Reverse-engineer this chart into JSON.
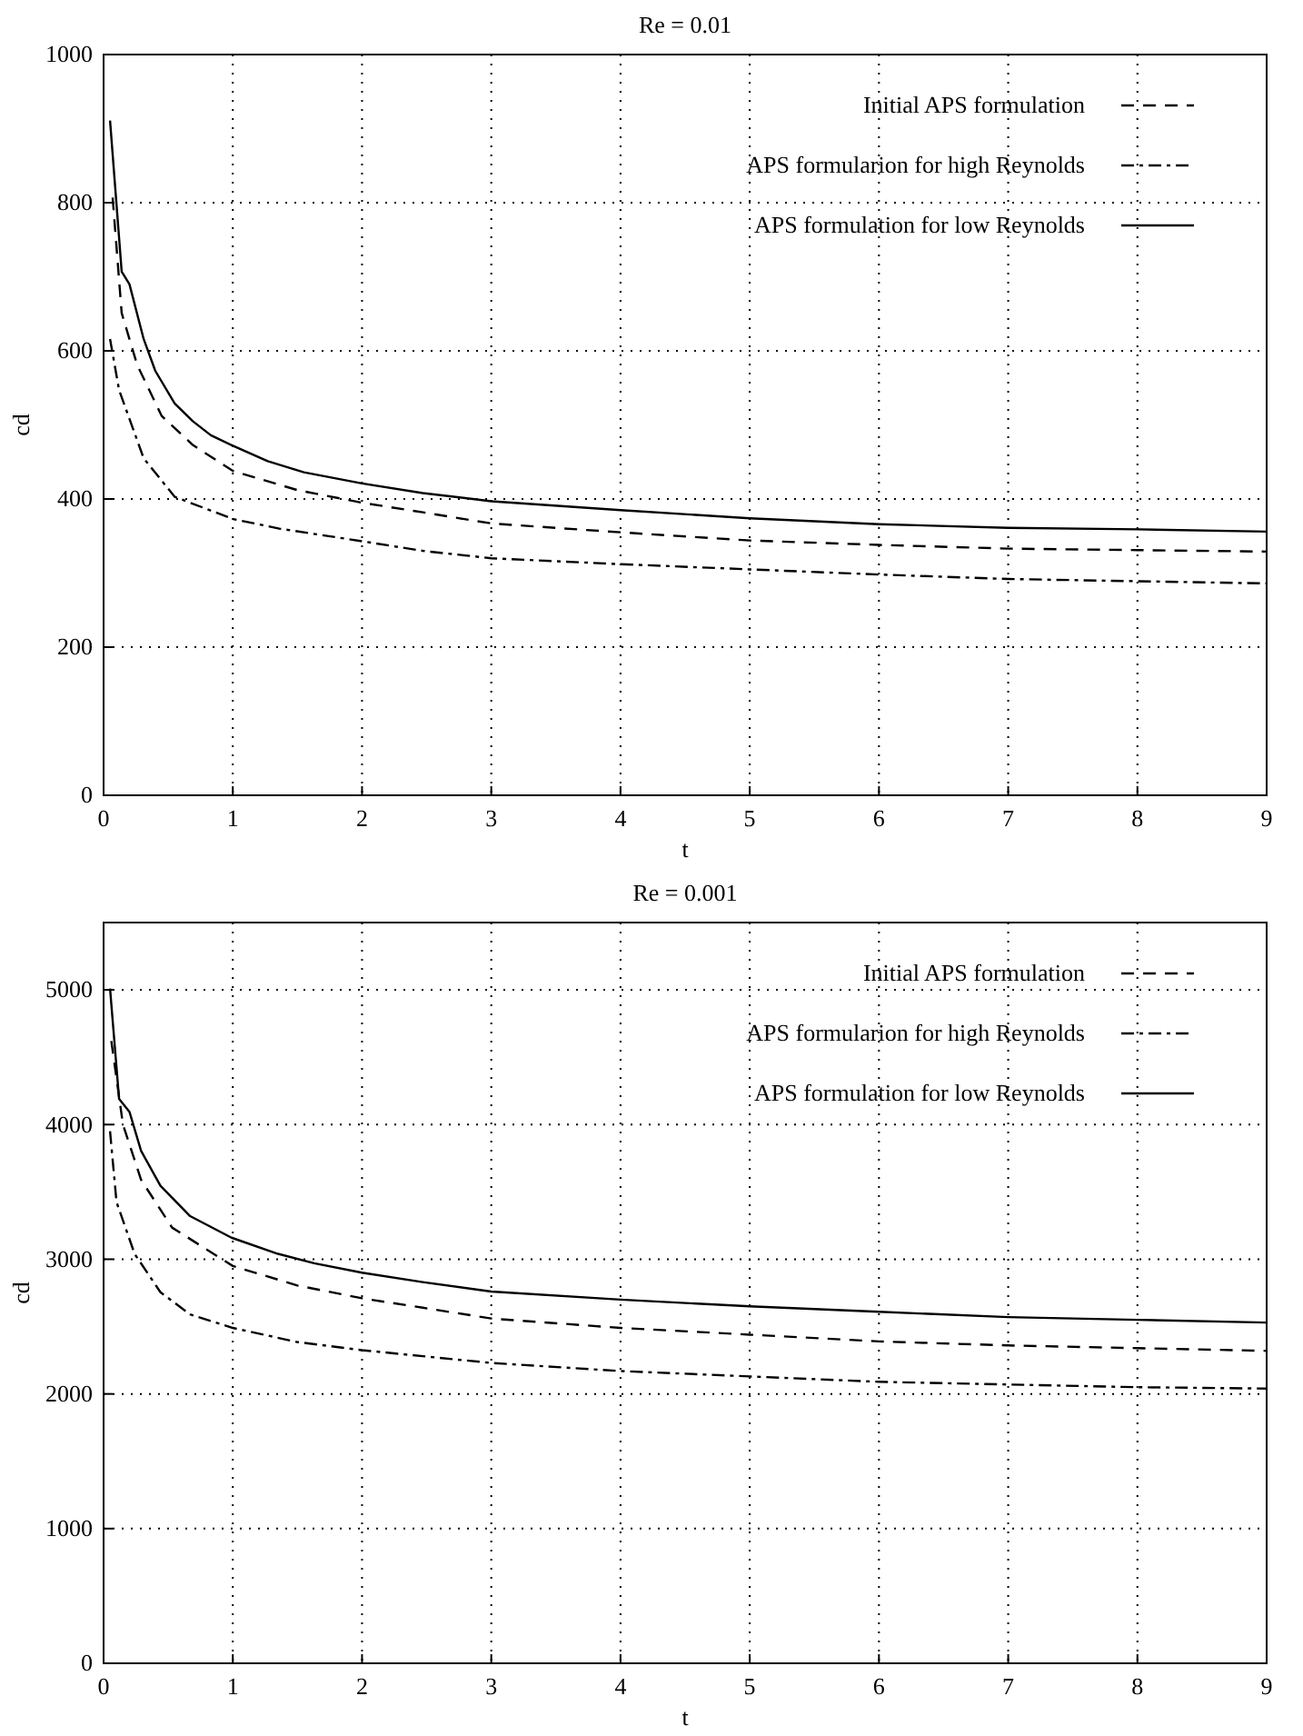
{
  "chart_data": [
    {
      "type": "line",
      "title": "Re = 0.01",
      "xlabel": "t",
      "ylabel": "cd",
      "xlim": [
        0,
        9
      ],
      "ylim": [
        0,
        1000
      ],
      "xticks": [
        0,
        1,
        2,
        3,
        4,
        5,
        6,
        7,
        8,
        9
      ],
      "yticks": [
        0,
        200,
        400,
        600,
        800,
        1000
      ],
      "grid": true,
      "legend": "top right",
      "marker": "none",
      "series": [
        {
          "name": "Initial APS formulation",
          "color": "#000000",
          "line_style": "dashed",
          "x": [
            0.07,
            0.14,
            0.26,
            0.45,
            0.69,
            1.0,
            1.5,
            2.0,
            2.47,
            3,
            4,
            5,
            6,
            7,
            8,
            9
          ],
          "values": [
            807,
            651,
            581,
            512,
            473,
            438,
            412,
            395,
            382,
            367,
            355,
            344,
            338,
            333,
            331,
            329
          ]
        },
        {
          "name": "APS formularion for high Reynolds",
          "color": "#000000",
          "line_style": "dashdot",
          "x": [
            0.05,
            0.12,
            0.31,
            0.55,
            1.0,
            1.36,
            2,
            2.47,
            3,
            4,
            5,
            6,
            7,
            8,
            9
          ],
          "values": [
            616,
            547,
            455,
            403,
            373,
            360,
            343,
            330,
            320,
            312,
            305,
            298,
            292,
            289,
            286
          ]
        },
        {
          "name": "APS formulation for low Reynolds",
          "color": "#000000",
          "line_style": "solid",
          "x": [
            0.05,
            0.14,
            0.2,
            0.31,
            0.4,
            0.55,
            0.69,
            0.83,
            1.0,
            1.27,
            1.55,
            2.0,
            2.47,
            3,
            4,
            5,
            6,
            7,
            8,
            9
          ],
          "values": [
            911,
            707,
            690,
            616,
            573,
            529,
            505,
            486,
            472,
            451,
            436,
            421,
            408,
            397,
            385,
            374,
            366,
            361,
            359,
            356
          ]
        }
      ]
    },
    {
      "type": "line",
      "title": "Re = 0.001",
      "xlabel": "t",
      "ylabel": "cd",
      "xlim": [
        0,
        9
      ],
      "ylim": [
        0,
        5500
      ],
      "xticks": [
        0,
        1,
        2,
        3,
        4,
        5,
        6,
        7,
        8,
        9
      ],
      "yticks": [
        0,
        1000,
        2000,
        3000,
        4000,
        5000
      ],
      "grid": true,
      "legend": "top right",
      "marker": "none",
      "series": [
        {
          "name": "Initial APS formulation",
          "color": "#000000",
          "line_style": "dashed",
          "x": [
            0.06,
            0.15,
            0.29,
            0.53,
            1.0,
            1.5,
            2,
            2.47,
            3,
            4,
            5,
            6,
            7,
            8,
            9
          ],
          "values": [
            4620,
            4000,
            3590,
            3235,
            2950,
            2805,
            2710,
            2640,
            2560,
            2490,
            2440,
            2390,
            2360,
            2340,
            2320
          ]
        },
        {
          "name": "APS formularion for high Reynolds",
          "color": "#000000",
          "line_style": "dashdot",
          "x": [
            0.05,
            0.1,
            0.24,
            0.44,
            0.67,
            1.0,
            1.5,
            2,
            2.47,
            3,
            4,
            5,
            6,
            7,
            8,
            9
          ],
          "values": [
            3950,
            3425,
            3040,
            2755,
            2590,
            2490,
            2385,
            2325,
            2280,
            2230,
            2170,
            2130,
            2090,
            2070,
            2050,
            2040
          ]
        },
        {
          "name": "APS formulation for low Reynolds",
          "color": "#000000",
          "line_style": "solid",
          "x": [
            0.05,
            0.12,
            0.2,
            0.29,
            0.44,
            0.67,
            0.99,
            1.35,
            1.63,
            2.0,
            2.47,
            3,
            4,
            5,
            6,
            7,
            8,
            9
          ],
          "values": [
            5010,
            4190,
            4095,
            3805,
            3545,
            3320,
            3160,
            3040,
            2970,
            2900,
            2830,
            2760,
            2700,
            2650,
            2610,
            2570,
            2550,
            2530
          ]
        }
      ]
    }
  ]
}
